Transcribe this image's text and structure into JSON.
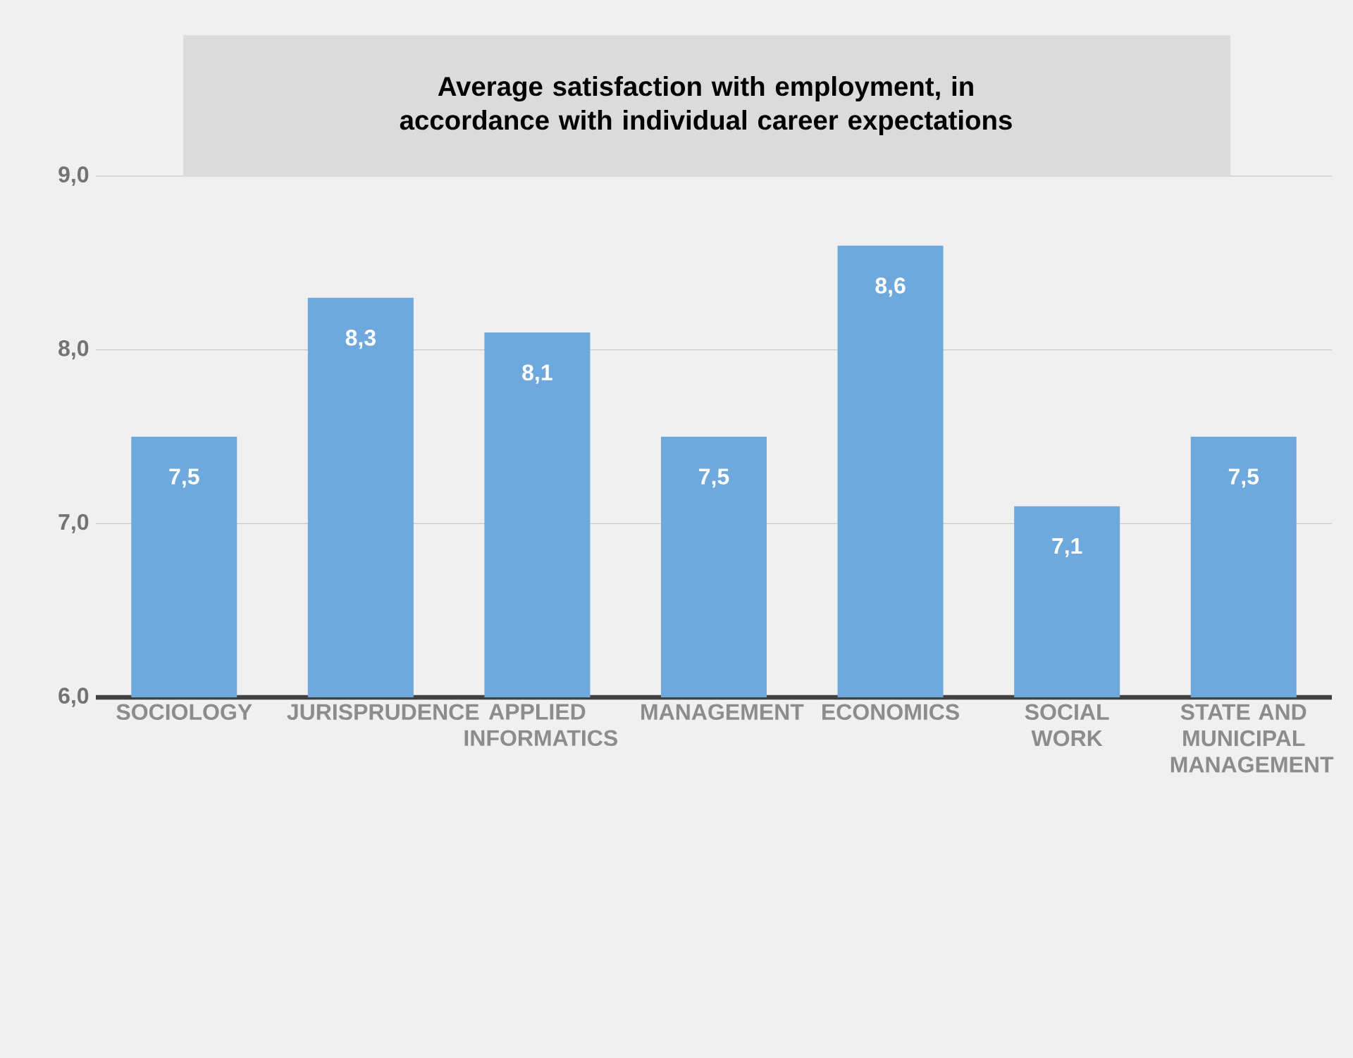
{
  "chart_data": {
    "type": "bar",
    "title": "Average satisfaction with employment, in accordance with individual career expectations",
    "categories": [
      "SOCIOLOGY",
      "JURISPRUDENCE",
      "APPLIED INFORMATICS",
      "MANAGEMENT",
      "ECONOMICS",
      "SOCIAL WORK",
      "STATE AND MUNICIPAL MANAGEMENT"
    ],
    "values": [
      7.5,
      8.3,
      8.1,
      7.5,
      8.6,
      7.1,
      7.5
    ],
    "value_labels": [
      "7,5",
      "8,3",
      "8,1",
      "7,5",
      "8,6",
      "7,1",
      "7,5"
    ],
    "color": "#6fa8dc",
    "ylim": [
      6,
      9
    ],
    "yticks": [
      {
        "value": 6,
        "label": "6,0"
      },
      {
        "value": 7,
        "label": "7,0"
      },
      {
        "value": 8,
        "label": "8,0"
      },
      {
        "value": 9,
        "label": "9,0"
      }
    ],
    "grid": "y"
  }
}
